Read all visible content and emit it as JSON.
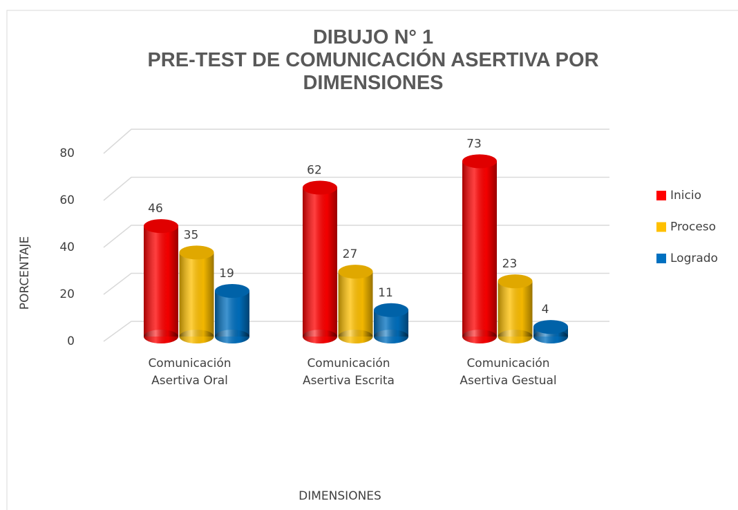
{
  "chart_data": {
    "type": "bar",
    "title": "DIBUJO N° 1",
    "subtitle": "PRE-TEST  DE COMUNICACIÓN ASERTIVA POR DIMENSIONES",
    "x_label": "DIMENSIONES",
    "y_label": "PORCENTAJE",
    "categories": [
      "Comunicación Asertiva Oral",
      "Comunicación Asertiva Escrita",
      "Comunicación Asertiva Gestual"
    ],
    "series": [
      {
        "name": "Inicio",
        "color": "#ff0000",
        "values": [
          46,
          62,
          73
        ]
      },
      {
        "name": "Proceso",
        "color": "#ffc000",
        "values": [
          35,
          27,
          23
        ]
      },
      {
        "name": "Logrado",
        "color": "#0070c0",
        "values": [
          19,
          11,
          4
        ]
      }
    ],
    "ylim": [
      0,
      80
    ],
    "yticks": [
      0,
      20,
      40,
      60,
      80
    ],
    "grid": true,
    "legend": "right"
  }
}
